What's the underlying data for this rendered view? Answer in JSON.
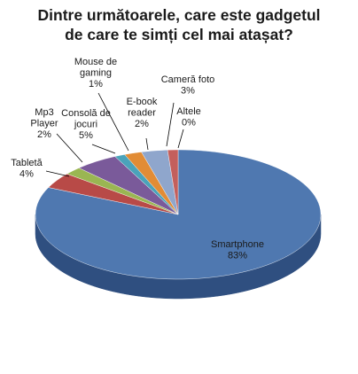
{
  "chart_data": {
    "type": "pie",
    "title_lines": [
      "Dintre următoarele, care este gadgetul",
      "de care te simți cel mai atașat?"
    ],
    "legend": "none",
    "style": "3d",
    "slices": [
      {
        "label_lines": [
          "Smartphone"
        ],
        "percent_label": "83%",
        "value": 83,
        "color": "#4f78b0",
        "side_color": "#2f4f80"
      },
      {
        "label_lines": [
          "Tabletă"
        ],
        "percent_label": "4%",
        "value": 4,
        "color": "#b84a47",
        "side_color": "#7d2e2c"
      },
      {
        "label_lines": [
          "Mp3",
          "Player"
        ],
        "percent_label": "2%",
        "value": 2,
        "color": "#9ab652",
        "side_color": "#6b8035"
      },
      {
        "label_lines": [
          "Consolă de",
          "jocuri"
        ],
        "percent_label": "5%",
        "value": 5,
        "color": "#7a5a9a",
        "side_color": "#533d6b"
      },
      {
        "label_lines": [
          "Mouse de",
          "gaming"
        ],
        "percent_label": "1%",
        "value": 1,
        "color": "#4aa3ba",
        "side_color": "#2f7182"
      },
      {
        "label_lines": [
          "E-book",
          "reader"
        ],
        "percent_label": "2%",
        "value": 2,
        "color": "#e28c35",
        "side_color": "#a76222"
      },
      {
        "label_lines": [
          "Cameră foto"
        ],
        "percent_label": "3%",
        "value": 3,
        "color": "#8fa6cc",
        "side_color": "#63779a"
      },
      {
        "label_lines": [
          "Altele"
        ],
        "percent_label": "0%",
        "value": 0,
        "color": "#c35f5c",
        "side_color": "#8a3e3c"
      }
    ]
  }
}
